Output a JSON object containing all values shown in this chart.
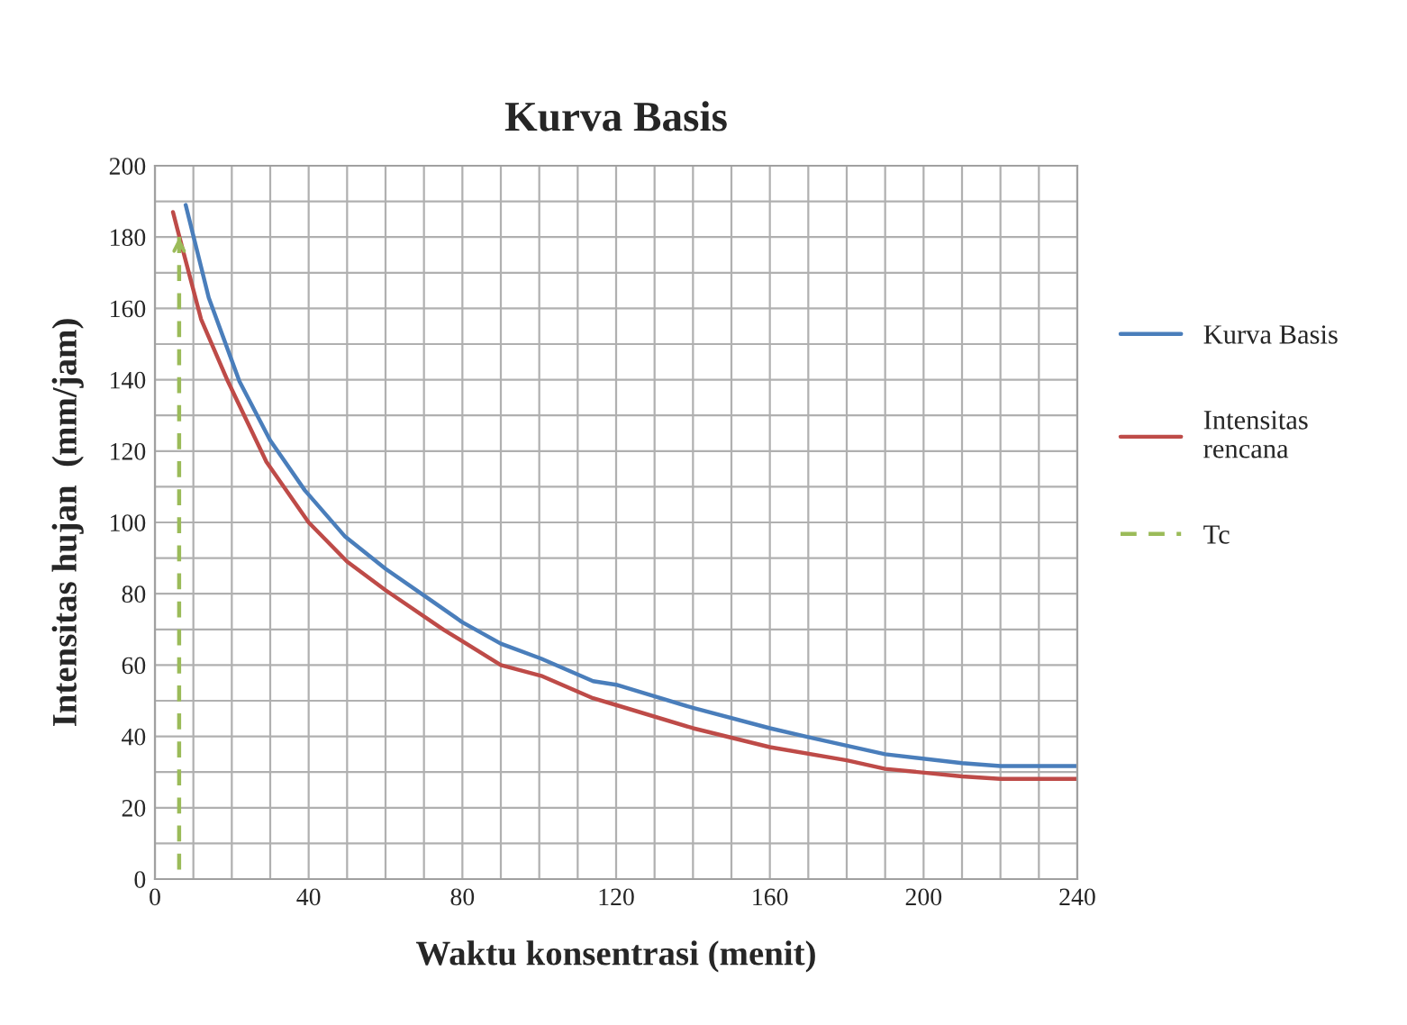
{
  "chart_data": {
    "type": "line",
    "title": "Kurva Basis",
    "xlabel": "Waktu konsentrasi (menit)",
    "ylabel": "Intensitas hujan  (mm/jam)",
    "xlim": [
      0,
      240
    ],
    "ylim": [
      0,
      200
    ],
    "xticks": [
      0,
      {
        "value": 10,
        "label": null
      },
      {
        "value": 20,
        "label": null
      },
      {
        "value": 30,
        "label": null
      },
      40,
      {
        "value": 50,
        "label": null
      },
      {
        "value": 60,
        "label": null
      },
      {
        "value": 70,
        "label": null
      },
      80,
      {
        "value": 90,
        "label": null
      },
      {
        "value": 100,
        "label": null
      },
      {
        "value": 110,
        "label": null
      },
      120,
      {
        "value": 130,
        "label": null
      },
      {
        "value": 140,
        "label": null
      },
      {
        "value": 150,
        "label": null
      },
      160,
      {
        "value": 170,
        "label": null
      },
      {
        "value": 180,
        "label": null
      },
      {
        "value": 190,
        "label": null
      },
      200,
      {
        "value": 210,
        "label": null
      },
      {
        "value": 220,
        "label": null
      },
      {
        "value": 230,
        "label": null
      },
      240
    ],
    "yticks": [
      0,
      {
        "value": 10,
        "label": null
      },
      20,
      {
        "value": 30,
        "label": null
      },
      40,
      {
        "value": 50,
        "label": null
      },
      60,
      {
        "value": 70,
        "label": null
      },
      80,
      {
        "value": 90,
        "label": null
      },
      100,
      {
        "value": 110,
        "label": null
      },
      120,
      {
        "value": 130,
        "label": null
      },
      140,
      {
        "value": 150,
        "label": null
      },
      160,
      {
        "value": 170,
        "label": null
      },
      180,
      {
        "value": 190,
        "label": null
      },
      200
    ],
    "grid": true,
    "legend": "right",
    "series": [
      {
        "name": "Kurva Basis",
        "color": "#4a7ebb",
        "x": [
          8,
          14,
          22,
          30,
          39,
          49.5,
          60,
          70,
          80,
          90,
          100.5,
          114,
          120,
          140,
          160,
          170,
          190,
          210,
          220,
          240
        ],
        "values": [
          189,
          163,
          139.5,
          123,
          109,
          96,
          87,
          79.5,
          72,
          66,
          61.8,
          55.5,
          54.5,
          48,
          42.3,
          39.8,
          35,
          32.5,
          31.7,
          31.7
        ]
      },
      {
        "name": "Intensitas\nrencana",
        "color": "#be4b48",
        "x": [
          4.7,
          6.5,
          12,
          19,
          29,
          40,
          50,
          60,
          75,
          90,
          100.5,
          114,
          120,
          140,
          160,
          180,
          190,
          210,
          220,
          240
        ],
        "values": [
          187,
          179.5,
          157,
          139.5,
          117,
          100,
          89,
          81,
          70,
          60,
          57,
          50.7,
          48.8,
          42.3,
          37,
          33.3,
          30.9,
          28.8,
          28.1,
          28.1
        ]
      },
      {
        "name": "Tc",
        "color": "#9bbb59",
        "line_style": "dashed",
        "x": [
          6.3,
          6.3
        ],
        "values": [
          180,
          0
        ]
      }
    ]
  }
}
